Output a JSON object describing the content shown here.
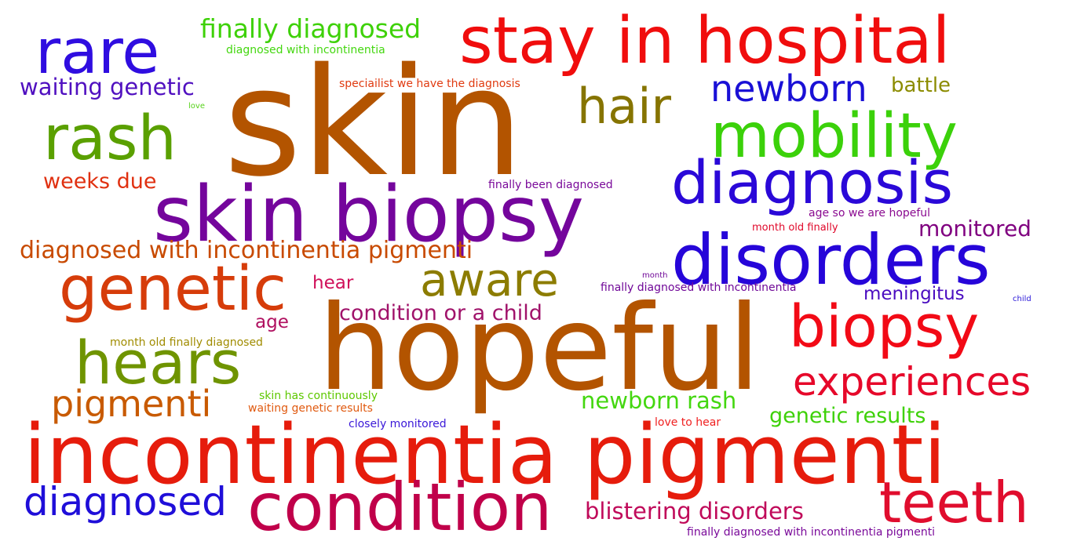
{
  "words": [
    {
      "text": "skin",
      "color": "#b35400"
    },
    {
      "text": "hopeful",
      "color": "#b35400"
    },
    {
      "text": "incontinentia pigmenti",
      "color": "#e61c0c"
    },
    {
      "text": "stay in hospital",
      "color": "#f00d0d"
    },
    {
      "text": "skin biopsy",
      "color": "#74059c"
    },
    {
      "text": "disorders",
      "color": "#2605d9"
    },
    {
      "text": "condition",
      "color": "#c0004a"
    },
    {
      "text": "rare",
      "color": "#2f0de0"
    },
    {
      "text": "mobility",
      "color": "#3bd10a"
    },
    {
      "text": "diagnosis",
      "color": "#2a08d8"
    },
    {
      "text": "genetic",
      "color": "#d63c0a"
    },
    {
      "text": "hears",
      "color": "#6f9400"
    },
    {
      "text": "biopsy",
      "color": "#f20a16"
    },
    {
      "text": "teeth",
      "color": "#e00d2e"
    },
    {
      "text": "rash",
      "color": "#5aa000"
    },
    {
      "text": "aware",
      "color": "#8c7c00"
    },
    {
      "text": "hair",
      "color": "#867400"
    },
    {
      "text": "diagnosed",
      "color": "#1f0ed9"
    },
    {
      "text": "experiences",
      "color": "#e6082a"
    },
    {
      "text": "pigmenti",
      "color": "#c85a00"
    },
    {
      "text": "newborn",
      "color": "#1a10d6"
    },
    {
      "text": "finally diagnosed",
      "color": "#3ed108"
    },
    {
      "text": "diagnosed with incontinentia pigmenti",
      "color": "#c84a00"
    },
    {
      "text": "blistering disorders",
      "color": "#c00a5a"
    },
    {
      "text": "waiting genetic",
      "color": "#5010c0"
    },
    {
      "text": "monitored",
      "color": "#800080"
    },
    {
      "text": "condition or a child",
      "color": "#a0126a"
    },
    {
      "text": "newborn rash",
      "color": "#44d710"
    },
    {
      "text": "genetic results",
      "color": "#3ed108"
    },
    {
      "text": "weeks due",
      "color": "#e03010"
    },
    {
      "text": "battle",
      "color": "#8c8c00"
    },
    {
      "text": "meningitus",
      "color": "#4a0cc0"
    },
    {
      "text": "hear",
      "color": "#d0105a"
    },
    {
      "text": "age",
      "color": "#b01060"
    },
    {
      "text": "month old finally diagnosed",
      "color": "#a08c00"
    },
    {
      "text": "finally diagnosed with incontinentia",
      "color": "#700898"
    },
    {
      "text": "finally been diagnosed",
      "color": "#7a0a9a"
    },
    {
      "text": "age so we are hopeful",
      "color": "#8a0a90"
    },
    {
      "text": "month old finally",
      "color": "#e0082a"
    },
    {
      "text": "diagnosed with incontinentia",
      "color": "#44d710"
    },
    {
      "text": "speciailist we have the diagnosis",
      "color": "#e03a10"
    },
    {
      "text": "skin has continuously",
      "color": "#5ec800"
    },
    {
      "text": "waiting genetic results",
      "color": "#e05a10"
    },
    {
      "text": "closely monitored",
      "color": "#3a18d8"
    },
    {
      "text": "love to hear",
      "color": "#f02020"
    },
    {
      "text": "finally diagnosed with incontinentia pigmenti",
      "color": "#7a0a9a"
    },
    {
      "text": "month",
      "color": "#700898"
    },
    {
      "text": "love",
      "color": "#56d21a"
    },
    {
      "text": "child",
      "color": "#2a18d8"
    }
  ]
}
